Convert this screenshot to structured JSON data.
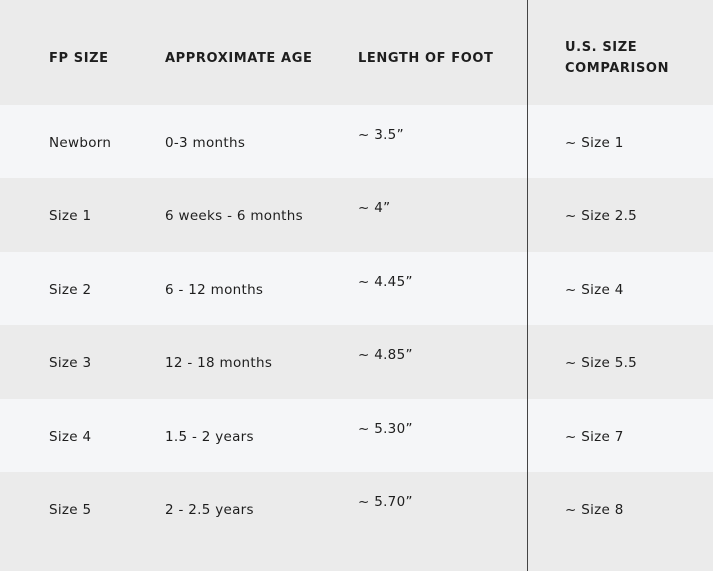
{
  "headers": [
    "FP SIZE",
    "APPROXIMATE AGE",
    "LENGTH OF FOOT",
    "U.S. SIZE COMPARISON"
  ],
  "header_us_line1": "U.S. SIZE",
  "header_us_line2": "COMPARISON",
  "rows": [
    [
      "Newborn",
      "0-3 months",
      "~ 3.5”",
      "~ Size 1"
    ],
    [
      "Size 1",
      "6 weeks - 6 months",
      "~ 4”",
      "~ Size 2.5"
    ],
    [
      "Size 2",
      "6 - 12 months",
      "~ 4.45”",
      "~ Size 4"
    ],
    [
      "Size 3",
      "12 - 18 months",
      "~ 4.85”",
      "~ Size 5.5"
    ],
    [
      "Size 4",
      "1.5 - 2 years",
      "~ 5.30”",
      "~ Size 7"
    ],
    [
      "Size 5",
      "2 - 2.5 years",
      "~ 5.70”",
      "~ Size 8"
    ]
  ],
  "colors": {
    "header_bg": "#ebebeb",
    "row_light": "#f5f6f8",
    "row_dark": "#ebebeb",
    "divider": "#444444"
  }
}
